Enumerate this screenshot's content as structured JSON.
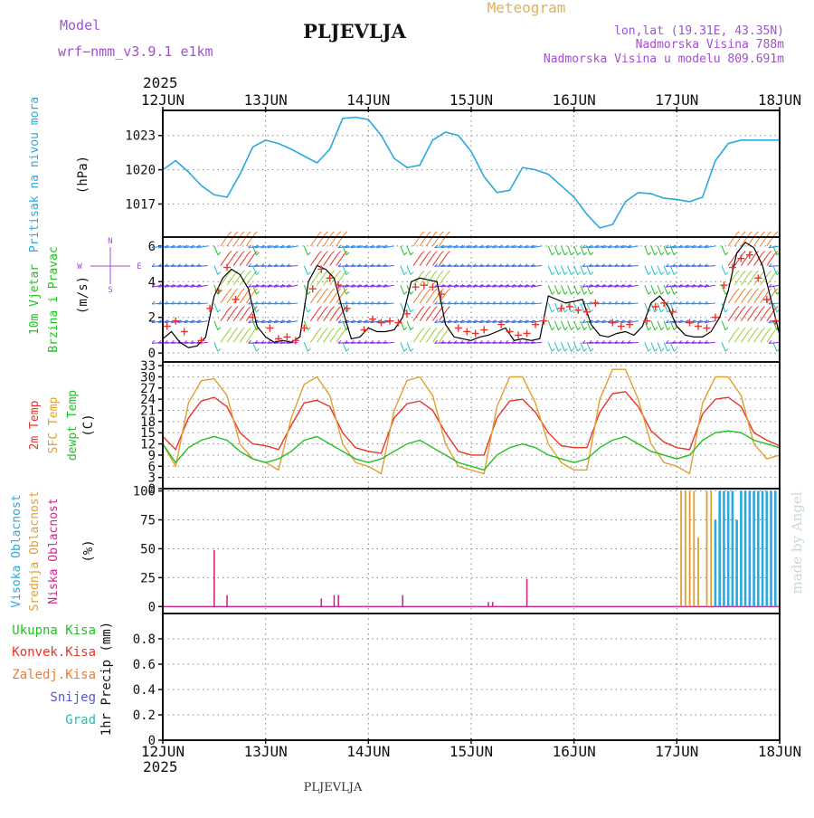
{
  "header": {
    "model_label": "Model",
    "model_name": "wrf−nmm_v3.9.1  e1km",
    "station": "PLJEVLJA",
    "meteogram": "Meteogram",
    "lonlat": "lon,lat (19.31E, 43.35N)",
    "elevation": "Nadmorska Visina 788m",
    "model_elevation": "Nadmorska Visina u modelu 809.691m",
    "footer_station": "PLJEVLJA",
    "credit": "made by Angel"
  },
  "time_axis": {
    "year": "2025",
    "ticks": [
      "12JUN",
      "13JUN",
      "14JUN",
      "15JUN",
      "16JUN",
      "17JUN",
      "18JUN"
    ],
    "hours": 144
  },
  "colors": {
    "pressure": "#2aa8e0",
    "wind_speed": "#000000",
    "gust_marker": "#e8352b",
    "temp": "#e8352b",
    "sfc_temp": "#e0a030",
    "dewpoint": "#22c022",
    "high_cloud": "#2aa8e0",
    "mid_cloud": "#e0a030",
    "low_cloud": "#cc2a8c",
    "total_precip": "#22c022",
    "conv_precip": "#e8352b",
    "frozen_precip": "#f07a2a",
    "snow": "#5555dd",
    "hail": "#22c0b0",
    "model_text": "#a050d0",
    "meteogram_text": "#e0b060"
  },
  "chart_data": [
    {
      "type": "line",
      "title": "",
      "ylabel": "Pritisak na nivou mora",
      "unit": "(hPa)",
      "yticks": [
        1017,
        1020,
        1023
      ],
      "ylim": [
        1014.1,
        1025.2
      ],
      "grid": true,
      "series": [
        {
          "key": "pressure",
          "x": [
            0,
            3,
            6,
            9,
            12,
            15,
            18,
            21,
            24,
            27,
            30,
            33,
            36,
            39,
            42,
            45,
            48,
            51,
            54,
            57,
            60,
            63,
            66,
            69,
            72,
            75,
            78,
            81,
            84,
            87,
            90,
            93,
            96,
            99,
            102,
            105,
            108,
            111,
            114,
            117,
            120,
            123,
            126,
            129,
            132,
            135,
            138,
            141,
            144
          ],
          "y": [
            1020.0,
            1020.8,
            1019.8,
            1018.6,
            1017.8,
            1017.6,
            1019.6,
            1022.0,
            1022.6,
            1022.3,
            1021.8,
            1021.2,
            1020.6,
            1021.8,
            1024.5,
            1024.6,
            1024.4,
            1023.0,
            1021.0,
            1020.2,
            1020.4,
            1022.6,
            1023.3,
            1023.0,
            1021.6,
            1019.4,
            1018.0,
            1018.2,
            1020.2,
            1020.0,
            1019.6,
            1018.6,
            1017.6,
            1016.1,
            1014.9,
            1015.2,
            1017.2,
            1018.0,
            1017.9,
            1017.5,
            1017.4,
            1017.2,
            1017.6,
            1020.8,
            1022.3,
            1022.6,
            1022.6,
            1022.6,
            1022.6
          ]
        }
      ]
    },
    {
      "type": "line",
      "title": "",
      "ylabel": "10m Vjetar Brzina i Pravac",
      "unit": "(m/s)",
      "compass": {
        "north": "N",
        "south": "S",
        "east": "E",
        "west": "W"
      },
      "yticks": [
        0,
        2,
        4,
        6
      ],
      "ylim": [
        -0.5,
        6.5
      ],
      "grid": true,
      "series": [
        {
          "key": "wind_speed",
          "x": [
            0,
            2,
            4,
            6,
            8,
            10,
            12,
            14,
            16,
            18,
            20,
            22,
            24,
            26,
            28,
            30,
            32,
            34,
            36,
            38,
            40,
            42,
            44,
            46,
            48,
            50,
            52,
            54,
            56,
            58,
            60,
            62,
            64,
            66,
            68,
            70,
            72,
            74,
            76,
            78,
            80,
            82,
            84,
            86,
            88,
            90,
            92,
            94,
            96,
            98,
            100,
            102,
            104,
            106,
            108,
            110,
            112,
            114,
            116,
            118,
            120,
            122,
            124,
            126,
            128,
            130,
            132,
            134,
            136,
            138,
            140,
            142,
            144
          ],
          "y": [
            0.8,
            1.2,
            0.6,
            0.3,
            0.4,
            0.9,
            3.2,
            4.2,
            4.7,
            4.4,
            3.6,
            1.5,
            0.9,
            0.6,
            0.7,
            0.6,
            0.9,
            4.0,
            4.9,
            4.7,
            4.2,
            2.4,
            0.8,
            0.9,
            1.4,
            1.2,
            1.2,
            1.3,
            2.0,
            4.0,
            4.2,
            4.1,
            4.0,
            1.6,
            0.9,
            0.8,
            0.7,
            0.9,
            1.0,
            1.2,
            1.4,
            0.7,
            0.8,
            0.7,
            0.8,
            3.2,
            3.0,
            2.8,
            2.9,
            3.0,
            1.6,
            1.0,
            0.9,
            1.1,
            1.2,
            1.0,
            1.5,
            2.8,
            3.2,
            2.6,
            1.5,
            1.0,
            0.9,
            0.9,
            1.2,
            2.0,
            3.5,
            5.6,
            6.2,
            5.9,
            4.9,
            3.0,
            1.0
          ]
        },
        {
          "key": "gust",
          "x": [
            1,
            3,
            5,
            9,
            11,
            13,
            15,
            17,
            21,
            25,
            27,
            29,
            31,
            33,
            35,
            37,
            39,
            41,
            43,
            47,
            49,
            51,
            53,
            55,
            57,
            59,
            61,
            63,
            65,
            69,
            71,
            73,
            75,
            79,
            81,
            83,
            85,
            87,
            89,
            93,
            95,
            97,
            99,
            101,
            105,
            107,
            109,
            113,
            115,
            117,
            119,
            123,
            125,
            127,
            129,
            131,
            133,
            135,
            137,
            139,
            141,
            143
          ],
          "y": [
            1.5,
            1.8,
            1.2,
            0.7,
            2.5,
            3.5,
            4.8,
            3.0,
            2.0,
            1.4,
            0.8,
            0.9,
            0.7,
            1.4,
            3.6,
            4.7,
            4.2,
            3.8,
            2.5,
            1.3,
            1.9,
            1.7,
            1.8,
            1.7,
            2.2,
            3.7,
            3.8,
            3.7,
            3.3,
            1.4,
            1.2,
            1.1,
            1.3,
            1.6,
            1.2,
            1.0,
            1.1,
            1.6,
            1.8,
            2.5,
            2.6,
            2.4,
            2.3,
            2.8,
            1.7,
            1.5,
            1.6,
            1.8,
            2.6,
            2.8,
            2.3,
            1.7,
            1.5,
            1.4,
            2.0,
            3.8,
            4.8,
            5.3,
            5.5,
            4.2,
            3.0,
            1.8
          ]
        }
      ]
    },
    {
      "type": "line",
      "title": "",
      "ylabels": [
        "2m Temp",
        "SFC Temp",
        "dewpt Temp"
      ],
      "unit": "(C)",
      "yticks": [
        0,
        3,
        6,
        9,
        12,
        15,
        18,
        21,
        24,
        27,
        30,
        33
      ],
      "ylim": [
        0,
        34
      ],
      "grid": true,
      "series": [
        {
          "key": "temp",
          "x": [
            0,
            3,
            6,
            9,
            12,
            15,
            18,
            21,
            24,
            27,
            30,
            33,
            36,
            39,
            42,
            45,
            48,
            51,
            54,
            57,
            60,
            63,
            66,
            69,
            72,
            75,
            78,
            81,
            84,
            87,
            90,
            93,
            96,
            99,
            102,
            105,
            108,
            111,
            114,
            117,
            120,
            123,
            126,
            129,
            132,
            135,
            138,
            141,
            144
          ],
          "y": [
            14,
            10.5,
            19,
            23.5,
            24.5,
            22,
            15,
            12,
            11.5,
            10.5,
            17,
            23,
            23.7,
            22,
            15,
            11,
            10,
            9.5,
            19,
            22.8,
            23.5,
            21,
            15,
            10,
            9,
            9,
            19,
            23.5,
            24,
            20.5,
            15,
            11.5,
            11,
            11,
            20.5,
            25.5,
            26,
            22,
            15.5,
            12.5,
            11,
            10.5,
            20,
            24,
            24.5,
            22,
            15,
            13,
            11.5
          ]
        },
        {
          "key": "sfc_temp",
          "x": [
            0,
            3,
            6,
            9,
            12,
            15,
            18,
            21,
            24,
            27,
            30,
            33,
            36,
            39,
            42,
            45,
            48,
            51,
            54,
            57,
            60,
            63,
            66,
            69,
            72,
            75,
            78,
            81,
            84,
            87,
            90,
            93,
            96,
            99,
            102,
            105,
            108,
            111,
            114,
            117,
            120,
            123,
            126,
            129,
            132,
            135,
            138,
            141,
            144
          ],
          "y": [
            12,
            6,
            23,
            29,
            29.5,
            25,
            12,
            8,
            7,
            5,
            19,
            28,
            30,
            25,
            12,
            7,
            6,
            4,
            21,
            29,
            30,
            25,
            12,
            6,
            5,
            4,
            22,
            30,
            30,
            23,
            12,
            7,
            5,
            5,
            24,
            32,
            32,
            24,
            12,
            7,
            6,
            4,
            23,
            30,
            30,
            25,
            12,
            8,
            9
          ]
        },
        {
          "key": "dewpoint",
          "x": [
            0,
            3,
            6,
            9,
            12,
            15,
            18,
            21,
            24,
            27,
            30,
            33,
            36,
            39,
            42,
            45,
            48,
            51,
            54,
            57,
            60,
            63,
            66,
            69,
            72,
            75,
            78,
            81,
            84,
            87,
            90,
            93,
            96,
            99,
            102,
            105,
            108,
            111,
            114,
            117,
            120,
            123,
            126,
            129,
            132,
            135,
            138,
            141,
            144
          ],
          "y": [
            12,
            7,
            11,
            13,
            14,
            13,
            10,
            8,
            7,
            8,
            10,
            13,
            14,
            12,
            10,
            8,
            7,
            8,
            10,
            12,
            13,
            11,
            9,
            7,
            6,
            5,
            9,
            11,
            12,
            11,
            9,
            8,
            7,
            8,
            11,
            13,
            14,
            12,
            10,
            9,
            8,
            9,
            13,
            15,
            15.5,
            15,
            13,
            12,
            11
          ]
        }
      ]
    },
    {
      "type": "bar",
      "title": "",
      "ylabels": [
        "Visoka Oblacnost",
        "Srednja Oblacnost",
        "Niska Oblacnost"
      ],
      "unit": "(%)",
      "yticks": [
        0,
        25,
        50,
        75,
        100
      ],
      "ylim": [
        -6,
        102
      ],
      "grid": true,
      "series": [
        {
          "key": "low_cloud",
          "x": [
            12,
            15,
            37,
            40,
            41,
            56,
            76,
            77,
            85
          ],
          "y": [
            49,
            10,
            7,
            10,
            10,
            10,
            4,
            4,
            24
          ]
        },
        {
          "key": "mid_cloud",
          "x": [
            121,
            122,
            123,
            124,
            125,
            127,
            128,
            130,
            131,
            133,
            134,
            135,
            136,
            138,
            139,
            140,
            141,
            142,
            143
          ],
          "y": [
            100,
            100,
            100,
            100,
            60,
            100,
            100,
            60,
            100,
            100,
            60,
            100,
            100,
            100,
            100,
            100,
            100,
            100,
            100
          ]
        },
        {
          "key": "high_cloud",
          "x": [
            129,
            130,
            131,
            132,
            133,
            134,
            135,
            136,
            137,
            138,
            139,
            140,
            141,
            142,
            143
          ],
          "y": [
            75,
            100,
            100,
            100,
            100,
            75,
            100,
            100,
            100,
            100,
            100,
            100,
            100,
            100,
            100
          ]
        }
      ]
    },
    {
      "type": "line",
      "title": "",
      "ylabels": [
        "Ukupna Kisa",
        "Konvek.Kisa",
        "Zaledj.Kisa",
        "Snijeg",
        "Grad"
      ],
      "ylabel": "1hr Precip",
      "unit": "(mm)",
      "yticks": [
        0,
        0.2,
        0.4,
        0.6,
        0.8
      ],
      "ylim": [
        0,
        1.0
      ],
      "grid": true,
      "series": []
    }
  ]
}
